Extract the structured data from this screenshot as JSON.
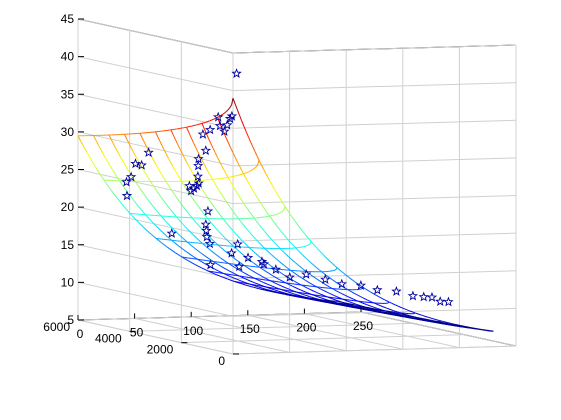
{
  "chart_data": {
    "type": "surface3d+scatter",
    "title": "",
    "xlabel": "",
    "ylabel": "",
    "zlabel": "",
    "x_axis": {
      "ticks": [
        "0",
        "50",
        "100",
        "150",
        "200",
        "250"
      ],
      "range": [
        0,
        250
      ]
    },
    "y_axis": {
      "ticks": [
        "0",
        "2000",
        "4000",
        "6000"
      ],
      "range": [
        0,
        6000
      ]
    },
    "z_axis": {
      "ticks": [
        "5",
        "10",
        "15",
        "20",
        "25",
        "30",
        "35",
        "40",
        "45"
      ],
      "range": [
        5,
        45
      ]
    },
    "grid": true,
    "surface": {
      "model": "z = 5 + 34*exp(-0.0122*x)*(1 - 0.28*sqrt(y/6000))",
      "x_range": [
        0,
        230
      ],
      "y_range": [
        0,
        6000
      ],
      "grid_lines": 10,
      "colormap": "jet"
    },
    "scatter": {
      "marker": "star",
      "color": "#0000a0",
      "points": [
        [
          10,
          300,
          42
        ],
        [
          15,
          700,
          36
        ],
        [
          18,
          900,
          35.5
        ],
        [
          20,
          1100,
          34.5
        ],
        [
          22,
          1300,
          33.5
        ],
        [
          25,
          1600,
          34
        ],
        [
          28,
          1800,
          35
        ],
        [
          30,
          2200,
          33
        ],
        [
          33,
          2500,
          30
        ],
        [
          35,
          2700,
          32
        ],
        [
          38,
          3000,
          28.5
        ],
        [
          40,
          3100,
          27.5
        ],
        [
          42,
          3200,
          26
        ],
        [
          45,
          3300,
          25
        ],
        [
          48,
          3500,
          24.5
        ],
        [
          50,
          3700,
          24
        ],
        [
          52,
          3900,
          23.5
        ],
        [
          55,
          4100,
          24
        ],
        [
          12,
          4300,
          27
        ],
        [
          15,
          4600,
          25
        ],
        [
          20,
          5000,
          24
        ],
        [
          25,
          5200,
          22
        ],
        [
          35,
          4800,
          28
        ],
        [
          38,
          5200,
          26
        ],
        [
          60,
          3600,
          21
        ],
        [
          65,
          3900,
          19
        ],
        [
          70,
          4100,
          18
        ],
        [
          75,
          4300,
          17
        ],
        [
          80,
          4400,
          16
        ],
        [
          90,
          4000,
          15
        ],
        [
          100,
          3800,
          14.5
        ],
        [
          110,
          3700,
          14
        ],
        [
          120,
          3600,
          13
        ],
        [
          130,
          3500,
          12
        ],
        [
          140,
          3300,
          12.5
        ],
        [
          150,
          3000,
          12
        ],
        [
          160,
          2800,
          11.5
        ],
        [
          170,
          2500,
          11.5
        ],
        [
          180,
          2300,
          11
        ],
        [
          190,
          2000,
          11
        ],
        [
          200,
          1800,
          10.5
        ],
        [
          205,
          1600,
          10.5
        ],
        [
          210,
          1500,
          10.5
        ],
        [
          215,
          1400,
          10
        ],
        [
          220,
          1300,
          10
        ],
        [
          100,
          4200,
          16
        ],
        [
          130,
          4500,
          13
        ],
        [
          85,
          4600,
          13
        ],
        [
          115,
          4800,
          12.5
        ],
        [
          60,
          5000,
          17
        ]
      ]
    }
  }
}
